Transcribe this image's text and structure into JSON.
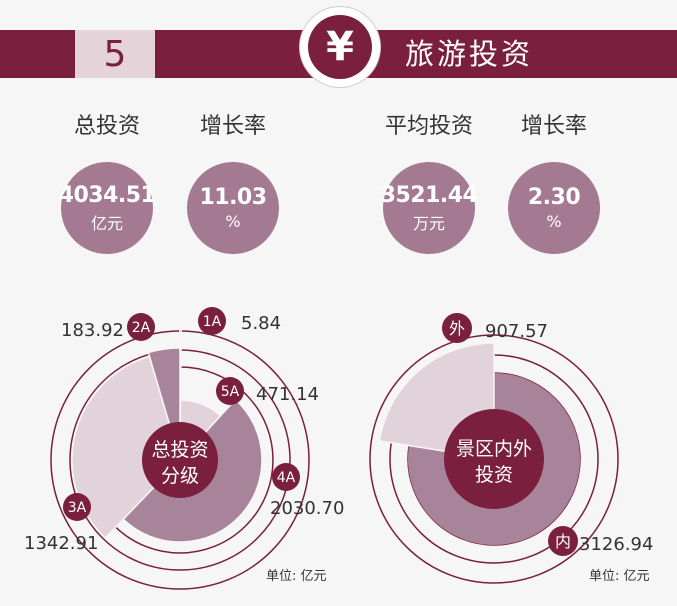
{
  "header": {
    "section_number": "5",
    "currency_icon": "¥",
    "title": "旅游投资"
  },
  "stats": [
    {
      "label": "总投资",
      "value": "4034.51",
      "unit": "亿元"
    },
    {
      "label": "增长率",
      "value": "11.03",
      "unit": "%"
    },
    {
      "label": "平均投资",
      "value": "3521.44",
      "unit": "万元"
    },
    {
      "label": "增长率",
      "value": "2.30",
      "unit": "%"
    }
  ],
  "colors": {
    "brand": "#7a1f3e",
    "circle": "#a47a93",
    "slice_dark": "#a8849a",
    "slice_light": "#e2d3da"
  },
  "chart_data": [
    {
      "type": "pie",
      "title": "总投资分级",
      "unit_note": "单位: 亿元",
      "slices": [
        {
          "key": "1A",
          "label": "1A",
          "value": 5.84,
          "value_text": "5.84"
        },
        {
          "key": "5A",
          "label": "5A",
          "value": 471.14,
          "value_text": "471.14"
        },
        {
          "key": "4A",
          "label": "4A",
          "value": 2030.7,
          "value_text": "2030.70"
        },
        {
          "key": "3A",
          "label": "3A",
          "value": 1342.91,
          "value_text": "1342.91"
        },
        {
          "key": "2A",
          "label": "2A",
          "value": 183.92,
          "value_text": "183.92"
        }
      ]
    },
    {
      "type": "pie",
      "title": "景区内外投资",
      "unit_note": "单位: 亿元",
      "slices": [
        {
          "key": "inner",
          "label": "内",
          "value": 3126.94,
          "value_text": "3126.94"
        },
        {
          "key": "outer",
          "label": "外",
          "value": 907.57,
          "value_text": "907.57"
        }
      ]
    }
  ]
}
